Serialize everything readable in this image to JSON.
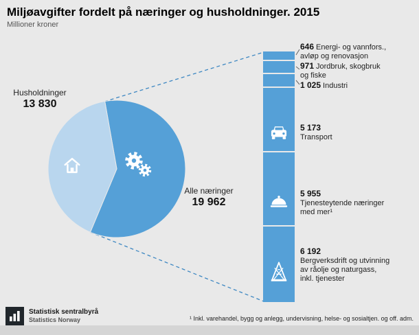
{
  "header": {
    "title": "Miljøavgifter fordelt på næringer og husholdninger. 2015",
    "subtitle": "Millioner kroner"
  },
  "chart_data": [
    {
      "type": "pie",
      "unit": "Millioner kroner",
      "slices": [
        {
          "label": "Husholdninger",
          "value": 13830,
          "value_label": "13 830",
          "color": "#b9d6ee",
          "icon": "house-icon"
        },
        {
          "label": "Alle næringer",
          "value": 19962,
          "value_label": "19 962",
          "color": "#55a0d7",
          "icon": "gears-icon"
        }
      ]
    },
    {
      "type": "bar",
      "stacked": true,
      "orientation": "vertical",
      "unit": "Millioner kroner",
      "color": "#55a0d7",
      "segments": [
        {
          "label": "Energi- og vannfors., avløp og renovasjon",
          "label_lines": [
            "Energi- og vannfors.,",
            "avløp og renovasjon"
          ],
          "value": 646,
          "value_label": "646"
        },
        {
          "label": "Jordbruk, skogbruk og fiske",
          "label_lines": [
            "Jordbruk, skogbruk",
            "og fiske"
          ],
          "value": 971,
          "value_label": "971"
        },
        {
          "label": "Industri",
          "label_lines": [
            "Industri"
          ],
          "value": 1025,
          "value_label": "1 025"
        },
        {
          "label": "Transport",
          "label_lines": [
            "Transport"
          ],
          "value": 5173,
          "value_label": "5 173",
          "icon": "car-icon"
        },
        {
          "label": "Tjenesteytende næringer med mer¹",
          "label_lines": [
            "Tjenesteytende næringer",
            "med mer¹"
          ],
          "value": 5955,
          "value_label": "5 955",
          "icon": "cloche-icon"
        },
        {
          "label": "Bergverksdrift og utvinning av råolje og naturgass, inkl. tjenester",
          "label_lines": [
            "Bergverksdrift og utvinning",
            "av råolje og naturgass,",
            "inkl. tjenester"
          ],
          "value": 6192,
          "value_label": "6 192",
          "icon": "oil-platform-icon"
        }
      ]
    }
  ],
  "footer": {
    "logo_line1": "Statistisk sentralbyrå",
    "logo_line2": "Statistics Norway",
    "footnote": "¹ Inkl. varehandel, bygg og anlegg, undervisning, helse- og sosialtjen. og off. adm."
  }
}
